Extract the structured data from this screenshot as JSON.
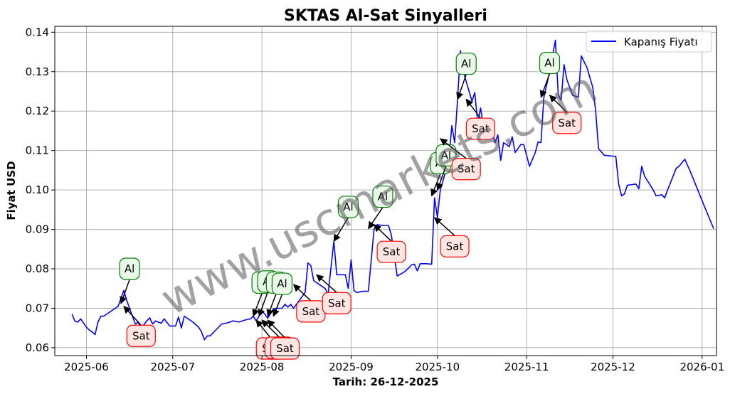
{
  "chart_data": {
    "type": "line",
    "title": "SKTAS Al-Sat Sinyalleri",
    "xlabel": "Tarih: 26-12-2025",
    "ylabel": "Fiyat USD",
    "xlim": [
      "2025-05-21",
      "2026-01-06"
    ],
    "ylim": [
      0.058,
      0.1415
    ],
    "grid": true,
    "legend_position": "top-right",
    "x_ticks": [
      "2025-06",
      "2025-07",
      "2025-08",
      "2025-09",
      "2025-10",
      "2025-11",
      "2025-12",
      "2026-01"
    ],
    "y_ticks": [
      "0.06",
      "0.07",
      "0.08",
      "0.09",
      "0.10",
      "0.11",
      "0.12",
      "0.13",
      "0.14"
    ],
    "series": [
      {
        "name": "Kapanış Fiyatı",
        "color": "#0000ff",
        "points": [
          [
            "2025-05-27",
            0.0685
          ],
          [
            "2025-05-28",
            0.0667
          ],
          [
            "2025-05-29",
            0.0665
          ],
          [
            "2025-05-30",
            0.0673
          ],
          [
            "2025-06-01",
            0.0652
          ],
          [
            "2025-06-02",
            0.0645
          ],
          [
            "2025-06-03",
            0.064
          ],
          [
            "2025-06-04",
            0.0633
          ],
          [
            "2025-06-05",
            0.0665
          ],
          [
            "2025-06-06",
            0.068
          ],
          [
            "2025-06-07",
            0.068
          ],
          [
            "2025-06-09",
            0.069
          ],
          [
            "2025-06-11",
            0.07
          ],
          [
            "2025-06-12",
            0.0705
          ],
          [
            "2025-06-14",
            0.0745
          ],
          [
            "2025-06-15",
            0.072
          ],
          [
            "2025-06-16",
            0.07
          ],
          [
            "2025-06-17",
            0.068
          ],
          [
            "2025-06-18",
            0.066
          ],
          [
            "2025-06-19",
            0.0665
          ],
          [
            "2025-06-20",
            0.065
          ],
          [
            "2025-06-22",
            0.0668
          ],
          [
            "2025-06-23",
            0.0676
          ],
          [
            "2025-06-24",
            0.066
          ],
          [
            "2025-06-25",
            0.0668
          ],
          [
            "2025-06-27",
            0.0662
          ],
          [
            "2025-06-28",
            0.0673
          ],
          [
            "2025-06-30",
            0.0655
          ],
          [
            "2025-07-02",
            0.0655
          ],
          [
            "2025-07-03",
            0.0678
          ],
          [
            "2025-07-04",
            0.065
          ],
          [
            "2025-07-05",
            0.068
          ],
          [
            "2025-07-08",
            0.0665
          ],
          [
            "2025-07-10",
            0.0652
          ],
          [
            "2025-07-11",
            0.064
          ],
          [
            "2025-07-12",
            0.062
          ],
          [
            "2025-07-13",
            0.063
          ],
          [
            "2025-07-14",
            0.063
          ],
          [
            "2025-07-16",
            0.0645
          ],
          [
            "2025-07-18",
            0.066
          ],
          [
            "2025-07-20",
            0.0663
          ],
          [
            "2025-07-22",
            0.0668
          ],
          [
            "2025-07-24",
            0.0665
          ],
          [
            "2025-07-26",
            0.067
          ],
          [
            "2025-07-28",
            0.0673
          ],
          [
            "2025-07-29",
            0.068
          ],
          [
            "2025-07-30",
            0.0668
          ],
          [
            "2025-07-31",
            0.068
          ],
          [
            "2025-08-01",
            0.0695
          ],
          [
            "2025-08-03",
            0.0675
          ],
          [
            "2025-08-05",
            0.0698
          ],
          [
            "2025-08-06",
            0.07
          ],
          [
            "2025-08-08",
            0.07
          ],
          [
            "2025-08-09",
            0.071
          ],
          [
            "2025-08-10",
            0.0703
          ],
          [
            "2025-08-11",
            0.071
          ],
          [
            "2025-08-12",
            0.07
          ],
          [
            "2025-08-14",
            0.072
          ],
          [
            "2025-08-16",
            0.074
          ],
          [
            "2025-08-17",
            0.0815
          ],
          [
            "2025-08-18",
            0.0808
          ],
          [
            "2025-08-19",
            0.077
          ],
          [
            "2025-08-21",
            0.076
          ],
          [
            "2025-08-23",
            0.075
          ],
          [
            "2025-08-24",
            0.0735
          ],
          [
            "2025-08-26",
            0.087
          ],
          [
            "2025-08-27",
            0.0785
          ],
          [
            "2025-08-29",
            0.0785
          ],
          [
            "2025-08-30",
            0.0785
          ],
          [
            "2025-08-31",
            0.075
          ],
          [
            "2025-09-01",
            0.0823
          ],
          [
            "2025-09-02",
            0.0745
          ],
          [
            "2025-09-03",
            0.074
          ],
          [
            "2025-09-05",
            0.0743
          ],
          [
            "2025-09-07",
            0.0743
          ],
          [
            "2025-09-09",
            0.0902
          ],
          [
            "2025-09-10",
            0.0912
          ],
          [
            "2025-09-12",
            0.091
          ],
          [
            "2025-09-14",
            0.091
          ],
          [
            "2025-09-15",
            0.0885
          ],
          [
            "2025-09-17",
            0.0782
          ],
          [
            "2025-09-19",
            0.079
          ],
          [
            "2025-09-20",
            0.0795
          ],
          [
            "2025-09-22",
            0.081
          ],
          [
            "2025-09-23",
            0.0812
          ],
          [
            "2025-09-24",
            0.0795
          ],
          [
            "2025-09-25",
            0.0813
          ],
          [
            "2025-09-27",
            0.0813
          ],
          [
            "2025-09-29",
            0.0812
          ],
          [
            "2025-09-30",
            0.098
          ],
          [
            "2025-10-01",
            0.093
          ],
          [
            "2025-10-02",
            0.1
          ],
          [
            "2025-10-04",
            0.105
          ],
          [
            "2025-10-05",
            0.108
          ],
          [
            "2025-10-06",
            0.1163
          ],
          [
            "2025-10-07",
            0.112
          ],
          [
            "2025-10-08",
            0.123
          ],
          [
            "2025-10-09",
            0.1353
          ],
          [
            "2025-10-10",
            0.13
          ],
          [
            "2025-10-12",
            0.125
          ],
          [
            "2025-10-13",
            0.1225
          ],
          [
            "2025-10-14",
            0.1247
          ],
          [
            "2025-10-15",
            0.117
          ],
          [
            "2025-10-16",
            0.1208
          ],
          [
            "2025-10-17",
            0.116
          ],
          [
            "2025-10-19",
            0.113
          ],
          [
            "2025-10-20",
            0.115
          ],
          [
            "2025-10-21",
            0.112
          ],
          [
            "2025-10-22",
            0.114
          ],
          [
            "2025-10-23",
            0.1075
          ],
          [
            "2025-10-24",
            0.112
          ],
          [
            "2025-10-26",
            0.111
          ],
          [
            "2025-10-27",
            0.1135
          ],
          [
            "2025-10-28",
            0.1095
          ],
          [
            "2025-10-30",
            0.1115
          ],
          [
            "2025-10-31",
            0.1115
          ],
          [
            "2025-11-02",
            0.106
          ],
          [
            "2025-11-04",
            0.1095
          ],
          [
            "2025-11-05",
            0.1122
          ],
          [
            "2025-11-06",
            0.112
          ],
          [
            "2025-11-07",
            0.1235
          ],
          [
            "2025-11-09",
            0.13
          ],
          [
            "2025-11-11",
            0.138
          ],
          [
            "2025-11-12",
            0.124
          ],
          [
            "2025-11-13",
            0.1228
          ],
          [
            "2025-11-14",
            0.1318
          ],
          [
            "2025-11-15",
            0.128
          ],
          [
            "2025-11-17",
            0.124
          ],
          [
            "2025-11-19",
            0.1235
          ],
          [
            "2025-11-20",
            0.134
          ],
          [
            "2025-11-22",
            0.131
          ],
          [
            "2025-11-24",
            0.126
          ],
          [
            "2025-11-25",
            0.12
          ],
          [
            "2025-11-26",
            0.1105
          ],
          [
            "2025-11-28",
            0.1088
          ],
          [
            "2025-12-02",
            0.1085
          ],
          [
            "2025-12-03",
            0.1015
          ],
          [
            "2025-12-04",
            0.0985
          ],
          [
            "2025-12-05",
            0.099
          ],
          [
            "2025-12-06",
            0.1012
          ],
          [
            "2025-12-09",
            0.1015
          ],
          [
            "2025-12-10",
            0.1003
          ],
          [
            "2025-12-11",
            0.106
          ],
          [
            "2025-12-12",
            0.1035
          ],
          [
            "2025-12-15",
            0.1
          ],
          [
            "2025-12-16",
            0.0985
          ],
          [
            "2025-12-18",
            0.0988
          ],
          [
            "2025-12-19",
            0.098
          ],
          [
            "2025-12-20",
            0.1
          ],
          [
            "2025-12-23",
            0.1055
          ],
          [
            "2025-12-24",
            0.106
          ],
          [
            "2025-12-26",
            0.1078
          ],
          [
            "2025-12-28",
            0.1045
          ],
          [
            "2026-01-02",
            0.0955
          ],
          [
            "2026-01-05",
            0.0902
          ]
        ]
      }
    ],
    "annotations": [
      {
        "label": "Al",
        "kind": "buy",
        "point": [
          "2025-06-13",
          0.0712
        ],
        "text_at": [
          "2025-06-16",
          0.08
        ]
      },
      {
        "label": "Sat",
        "kind": "sell",
        "point": [
          "2025-06-14",
          0.0705
        ],
        "text_at": [
          "2025-06-20",
          0.063
        ]
      },
      {
        "label": "Al",
        "kind": "buy",
        "point": [
          "2025-07-29",
          0.068
        ],
        "text_at": [
          "2025-08-01",
          0.0765
        ]
      },
      {
        "label": "Al",
        "kind": "buy",
        "point": [
          "2025-07-31",
          0.068
        ],
        "text_at": [
          "2025-08-03",
          0.0768
        ]
      },
      {
        "label": "Al",
        "kind": "buy",
        "point": [
          "2025-08-03",
          0.068
        ],
        "text_at": [
          "2025-08-06",
          0.0765
        ]
      },
      {
        "label": "Al",
        "kind": "buy",
        "point": [
          "2025-08-05",
          0.068
        ],
        "text_at": [
          "2025-08-08",
          0.0762
        ]
      },
      {
        "label": "Sat",
        "kind": "sell",
        "point": [
          "2025-07-30",
          0.067
        ],
        "text_at": [
          "2025-08-04",
          0.0598
        ]
      },
      {
        "label": "Sat",
        "kind": "sell",
        "point": [
          "2025-08-01",
          0.067
        ],
        "text_at": [
          "2025-08-07",
          0.06
        ]
      },
      {
        "label": "Sat",
        "kind": "sell",
        "point": [
          "2025-08-03",
          0.067
        ],
        "text_at": [
          "2025-08-09",
          0.0598
        ]
      },
      {
        "label": "Sat",
        "kind": "sell",
        "point": [
          "2025-08-12",
          0.076
        ],
        "text_at": [
          "2025-08-18",
          0.0692
        ]
      },
      {
        "label": "Sat",
        "kind": "sell",
        "point": [
          "2025-08-20",
          0.0785
        ],
        "text_at": [
          "2025-08-27",
          0.0713
        ]
      },
      {
        "label": "Al",
        "kind": "buy",
        "point": [
          "2025-08-26",
          0.087
        ],
        "text_at": [
          "2025-08-31",
          0.0957
        ]
      },
      {
        "label": "Al",
        "kind": "buy",
        "point": [
          "2025-09-07",
          0.0902
        ],
        "text_at": [
          "2025-09-12",
          0.0983
        ]
      },
      {
        "label": "Sat",
        "kind": "sell",
        "point": [
          "2025-09-09",
          0.0912
        ],
        "text_at": [
          "2025-09-15",
          0.0843
        ]
      },
      {
        "label": "Al",
        "kind": "buy",
        "point": [
          "2025-09-29",
          0.0985
        ],
        "text_at": [
          "2025-10-02",
          0.1068
        ]
      },
      {
        "label": "Sat",
        "kind": "sell",
        "point": [
          "2025-09-30",
          0.093
        ],
        "text_at": [
          "2025-10-07",
          0.0857
        ]
      },
      {
        "label": "Al",
        "kind": "buy",
        "point": [
          "2025-10-01",
          0.1
        ],
        "text_at": [
          "2025-10-04",
          0.1088
        ]
      },
      {
        "label": "Sat",
        "kind": "sell",
        "point": [
          "2025-10-02",
          0.113
        ],
        "text_at": [
          "2025-10-11",
          0.1053
        ]
      },
      {
        "label": "Al",
        "kind": "buy",
        "point": [
          "2025-10-08",
          0.123
        ],
        "text_at": [
          "2025-10-11",
          0.132
        ]
      },
      {
        "label": "Sat",
        "kind": "sell",
        "point": [
          "2025-10-11",
          0.123
        ],
        "text_at": [
          "2025-10-16",
          0.1155
        ]
      },
      {
        "label": "Al",
        "kind": "buy",
        "point": [
          "2025-11-06",
          0.1235
        ],
        "text_at": [
          "2025-11-09",
          0.1322
        ]
      },
      {
        "label": "Sat",
        "kind": "sell",
        "point": [
          "2025-11-09",
          0.124
        ],
        "text_at": [
          "2025-11-15",
          0.117
        ]
      }
    ],
    "watermark": "www.uscmarkets.com"
  }
}
